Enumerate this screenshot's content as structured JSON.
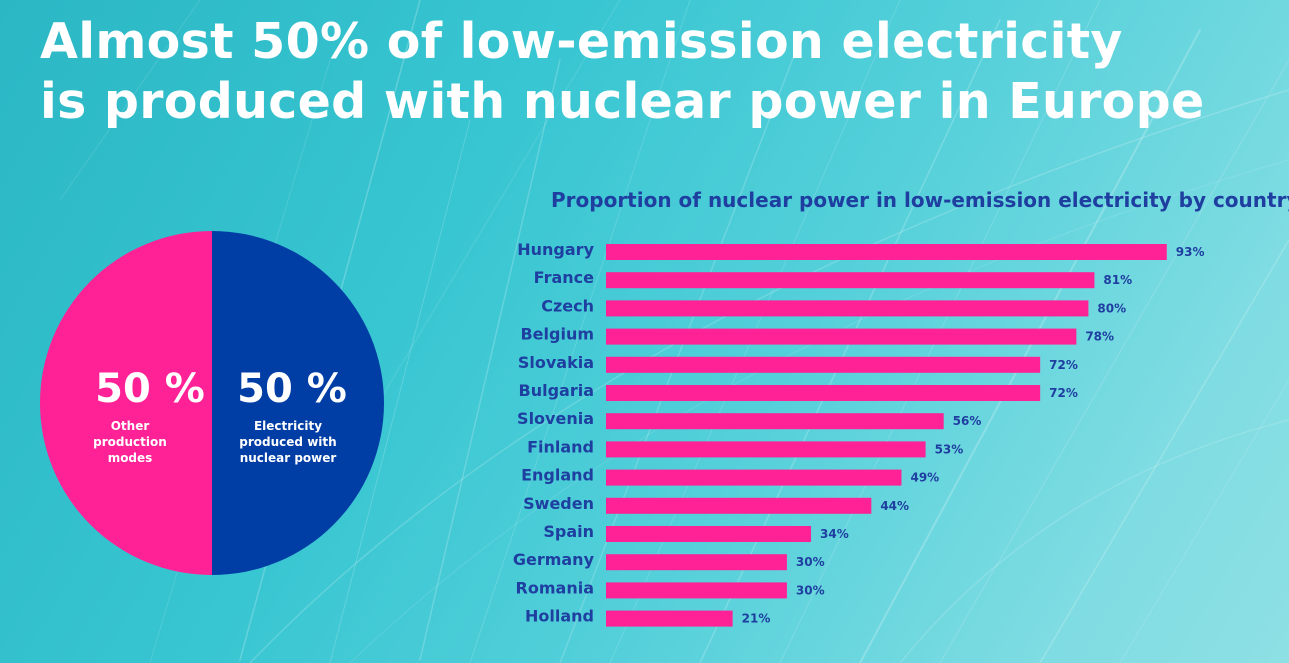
{
  "headline": {
    "line1": "Almost 50% of low-emission electricity",
    "line2": "is produced with nuclear power in Europe"
  },
  "colors": {
    "pink": "#ff2196",
    "navy": "#003da5",
    "text_blue": "#1e3ea0",
    "white": "#ffffff"
  },
  "pie": {
    "left_pct": "50 %",
    "left_label": [
      "Other",
      "production",
      "modes"
    ],
    "right_pct": "50 %",
    "right_label": [
      "Electricity",
      "produced with",
      "nuclear power"
    ]
  },
  "chart_data": [
    {
      "type": "pie",
      "slices": [
        {
          "label": "Other production modes",
          "value": 50,
          "color": "#ff2196"
        },
        {
          "label": "Electricity produced with nuclear power",
          "value": 50,
          "color": "#003da5"
        }
      ]
    },
    {
      "type": "bar",
      "orientation": "horizontal",
      "title": "Proportion of nuclear power in low-emission electricity by country",
      "categories": [
        "Hungary",
        "France",
        "Czech",
        "Belgium",
        "Slovakia",
        "Bulgaria",
        "Slovenia",
        "Finland",
        "England",
        "Sweden",
        "Spain",
        "Germany",
        "Romania",
        "Holland"
      ],
      "values": [
        93,
        81,
        80,
        78,
        72,
        72,
        56,
        53,
        49,
        44,
        34,
        30,
        30,
        21
      ],
      "value_labels": [
        "93%",
        "81%",
        "80%",
        "78%",
        "72%",
        "72%",
        "56%",
        "53%",
        "49%",
        "44%",
        "34%",
        "30%",
        "30%",
        "21%"
      ],
      "unit": "%",
      "xlim": [
        0,
        100
      ],
      "bar_color": "#ff2196",
      "grid": false,
      "legend": "none"
    }
  ]
}
